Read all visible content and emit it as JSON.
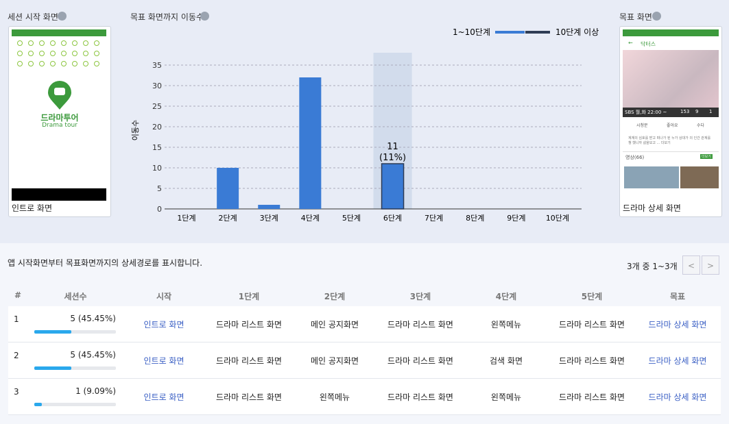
{
  "start_panel": {
    "title": "세션 시작 화면",
    "app_name": "드라마투어",
    "app_name_en": "Drama tour",
    "screen": "인트로 화면"
  },
  "chart_data": {
    "type": "bar",
    "title": "목표 화면까지 이동수",
    "y_label": "이동수",
    "legend": [
      "1~10단계",
      "10단계 이상"
    ],
    "legend_colors": [
      "#3a7bd5",
      "#2f3d55"
    ],
    "categories": [
      "1단계",
      "2단계",
      "3단계",
      "4단계",
      "5단계",
      "6단계",
      "7단계",
      "8단계",
      "9단계",
      "10단계"
    ],
    "values": [
      0,
      10,
      1,
      32,
      0,
      11,
      0,
      0,
      0,
      0
    ],
    "color": "#3a7bd5",
    "highlight": {
      "index": 5,
      "percent_label": "(11%)"
    },
    "ylim": [
      0,
      38
    ],
    "yticks": [
      0,
      5,
      10,
      15,
      20,
      25,
      30,
      35
    ],
    "grid": true
  },
  "goal_panel": {
    "title": "목표 화면",
    "screen": "드라마 상세 화면",
    "preview": {
      "header": "닥터스",
      "broadcast": "SBS 월,화 22:00 ~",
      "stats": [
        "153",
        "9",
        "1"
      ],
      "actions": [
        "시청문",
        "좋아요",
        "수다"
      ],
      "description": "계계의 심호를 받고 떠나가 된 누가 상대가 의 인간 관계를 챙 했니까 삶을모고 ... 더보기",
      "video": "영상(66)",
      "more": "더보기"
    }
  },
  "table": {
    "caption": "앱 시작화면부터 목표화면까지의 상세경로를 표시합니다.",
    "pagination": {
      "text": "3개 중 1~3개",
      "prev": "<",
      "next": ">"
    },
    "headers": [
      "#",
      "세션수",
      "시작",
      "1단계",
      "2단계",
      "3단계",
      "4단계",
      "5단계",
      "목표"
    ],
    "rows": [
      {
        "num": "1",
        "sessions": "5 (45.45%)",
        "share": 45.45,
        "cells": [
          "인트로 화면",
          "드라마 리스트 화면",
          "메인 공지화면",
          "드라마 리스트 화면",
          "왼쪽메뉴",
          "드라마 리스트 화면",
          "드라마 상세 화면"
        ]
      },
      {
        "num": "2",
        "sessions": "5 (45.45%)",
        "share": 45.45,
        "cells": [
          "인트로 화면",
          "드라마 리스트 화면",
          "메인 공지화면",
          "드라마 리스트 화면",
          "검색 화면",
          "드라마 리스트 화면",
          "드라마 상세 화면"
        ]
      },
      {
        "num": "3",
        "sessions": "1 (9.09%)",
        "share": 9.09,
        "cells": [
          "인트로 화면",
          "드라마 리스트 화면",
          "왼쪽메뉴",
          "드라마 리스트 화면",
          "왼쪽메뉴",
          "드라마 리스트 화면",
          "드라마 상세 화면"
        ]
      }
    ]
  }
}
